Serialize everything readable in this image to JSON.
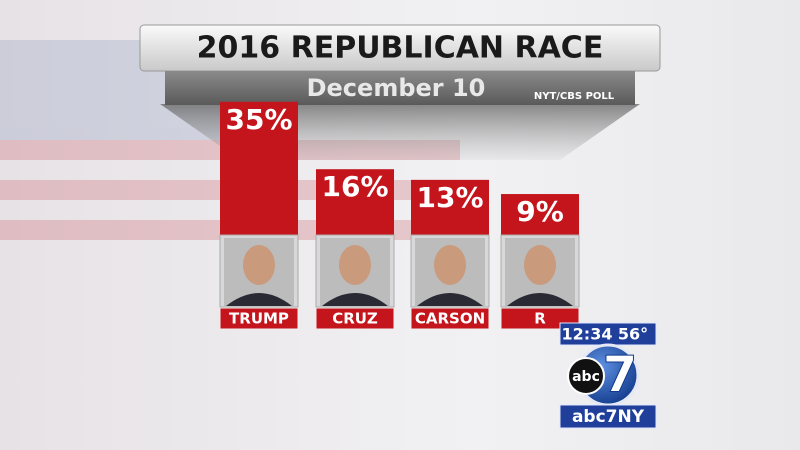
{
  "chart_data": {
    "type": "bar",
    "title": "2016 REPUBLICAN RACE",
    "subtitle": "December 10",
    "source": "NYT/CBS POLL",
    "categories": [
      "TRUMP",
      "CRUZ",
      "CARSON",
      "R"
    ],
    "values": [
      35,
      16,
      13,
      9
    ],
    "value_labels": [
      "35%",
      "16%",
      "13%",
      "9%"
    ],
    "color": "#c4141c"
  },
  "overlay": {
    "time": "12:34",
    "temperature": "56°",
    "logo": "abc",
    "logo_number": "7",
    "channel": "abc7NY"
  }
}
